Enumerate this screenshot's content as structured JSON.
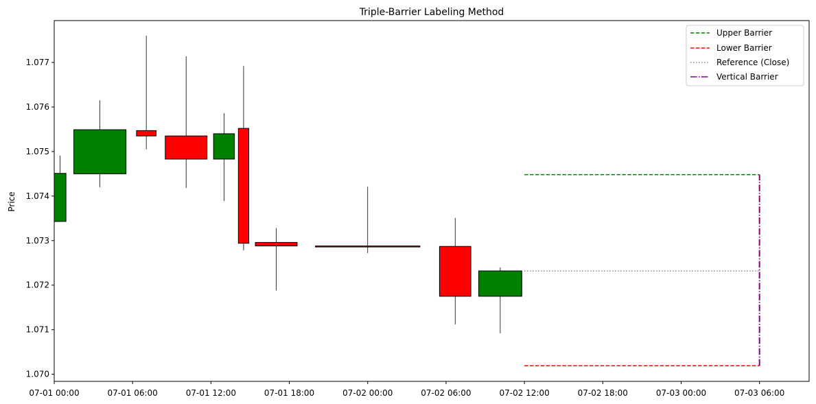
{
  "chart_data": {
    "type": "candlestick",
    "title": "Triple-Barrier Labeling Method",
    "xlabel": "",
    "ylabel": "Price",
    "x_ticks": [
      "07-01 00:00",
      "07-01 06:00",
      "07-01 12:00",
      "07-01 18:00",
      "07-02 00:00",
      "07-02 06:00",
      "07-02 12:00",
      "07-02 18:00",
      "07-03 00:00",
      "07-03 06:00"
    ],
    "x_tick_hours": [
      0,
      6,
      12,
      18,
      24,
      30,
      36,
      42,
      48,
      54
    ],
    "xlim_hours": [
      0,
      57.8
    ],
    "y_ticks": [
      1.07,
      1.071,
      1.072,
      1.073,
      1.074,
      1.075,
      1.076,
      1.077
    ],
    "y_tick_labels": [
      "1.070",
      "1.071",
      "1.072",
      "1.073",
      "1.074",
      "1.075",
      "1.076",
      "1.077"
    ],
    "ylim": [
      1.06984,
      1.07794
    ],
    "colors": {
      "up": "#008000",
      "down": "#ff0000",
      "upper": "#008000",
      "lower": "#ff0000",
      "reference": "#808080",
      "vertical": "#800080"
    },
    "candles": [
      {
        "start_hour": 0.0,
        "end_hour": 0.9,
        "open": 1.07343,
        "high": 1.07491,
        "low": 1.07342,
        "close": 1.07451,
        "direction": "up"
      },
      {
        "start_hour": 1.5,
        "end_hour": 5.5,
        "open": 1.0745,
        "high": 1.07615,
        "low": 1.0742,
        "close": 1.07549,
        "direction": "up"
      },
      {
        "start_hour": 6.3,
        "end_hour": 7.8,
        "open": 1.07547,
        "high": 1.0776,
        "low": 1.07505,
        "close": 1.07535,
        "direction": "down"
      },
      {
        "start_hour": 8.5,
        "end_hour": 11.7,
        "open": 1.07535,
        "high": 1.07714,
        "low": 1.07418,
        "close": 1.07483,
        "direction": "down"
      },
      {
        "start_hour": 12.2,
        "end_hour": 13.8,
        "open": 1.07483,
        "high": 1.07586,
        "low": 1.07389,
        "close": 1.0754,
        "direction": "up"
      },
      {
        "start_hour": 14.1,
        "end_hour": 14.9,
        "open": 1.07552,
        "high": 1.07692,
        "low": 1.07278,
        "close": 1.07294,
        "direction": "down"
      },
      {
        "start_hour": 15.4,
        "end_hour": 18.6,
        "open": 1.07296,
        "high": 1.07328,
        "low": 1.07188,
        "close": 1.07288,
        "direction": "down"
      },
      {
        "start_hour": 20.0,
        "end_hour": 28.0,
        "open": 1.07288,
        "high": 1.07421,
        "low": 1.07272,
        "close": 1.07288,
        "direction": "down"
      },
      {
        "start_hour": 29.5,
        "end_hour": 31.9,
        "open": 1.07287,
        "high": 1.07351,
        "low": 1.07112,
        "close": 1.07175,
        "direction": "down"
      },
      {
        "start_hour": 32.5,
        "end_hour": 35.8,
        "open": 1.07175,
        "high": 1.0724,
        "low": 1.07092,
        "close": 1.07232,
        "direction": "up"
      }
    ],
    "barriers": {
      "start_hour": 36.0,
      "end_hour": 54.0,
      "upper": 1.07448,
      "lower": 1.07019,
      "reference": 1.07232
    },
    "legend": {
      "placement": "top-right",
      "entries": [
        "Upper Barrier",
        "Lower Barrier",
        "Reference (Close)",
        "Vertical Barrier"
      ]
    }
  }
}
